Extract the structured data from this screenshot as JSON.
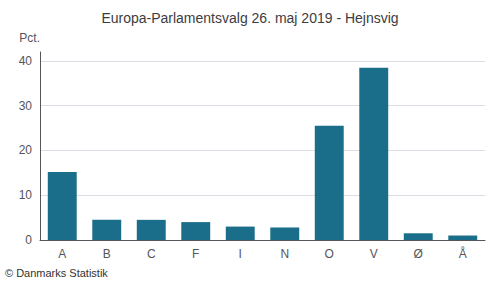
{
  "chart_data": {
    "type": "bar",
    "title": "Europa-Parlamentsvalg 26. maj 2019 - Hejnsvig",
    "categories": [
      "A",
      "B",
      "C",
      "F",
      "I",
      "N",
      "O",
      "V",
      "Ø",
      "Å"
    ],
    "values": [
      15.2,
      4.5,
      4.5,
      4.0,
      3.0,
      2.8,
      25.5,
      38.5,
      1.5,
      1.0
    ],
    "color": "#1a6e8a",
    "ylabel": "Pct.",
    "ylim": [
      0,
      42
    ],
    "yticks": [
      0,
      10,
      20,
      30,
      40
    ],
    "grid": true,
    "annotations": [
      "© Danmarks Statistik"
    ]
  }
}
